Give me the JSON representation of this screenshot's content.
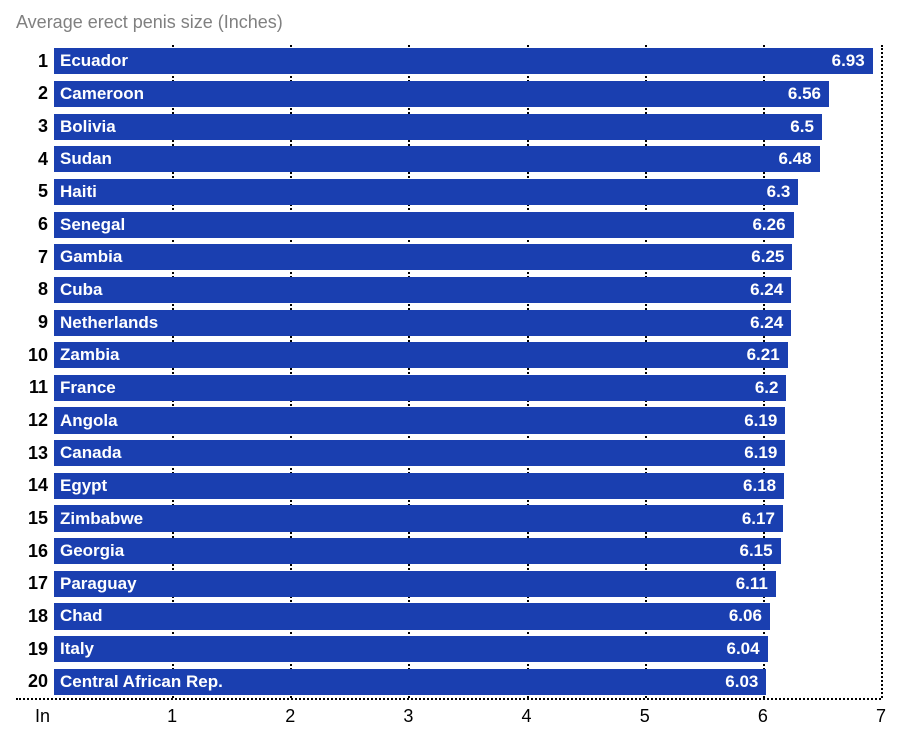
{
  "chart": {
    "type": "bar-horizontal",
    "title": "Average erect penis size (Inches)",
    "title_color": "#808080",
    "title_fontsize": 18,
    "bar_color": "#1a3fb0",
    "text_color": "#ffffff",
    "background_color": "#ffffff",
    "grid_color": "#000000",
    "grid_style": "dotted",
    "xaxis": {
      "label_at_zero": "In",
      "min": 0,
      "max": 7,
      "ticks": [
        1,
        2,
        3,
        4,
        5,
        6,
        7
      ]
    },
    "bar_label_fontsize": 17,
    "bar_value_fontsize": 17,
    "rank_fontsize": 18,
    "rows": [
      {
        "rank": "1",
        "label": "Ecuador",
        "value": 6.93,
        "display": "6.93"
      },
      {
        "rank": "2",
        "label": "Cameroon",
        "value": 6.56,
        "display": "6.56"
      },
      {
        "rank": "3",
        "label": "Bolivia",
        "value": 6.5,
        "display": "6.5"
      },
      {
        "rank": "4",
        "label": "Sudan",
        "value": 6.48,
        "display": "6.48"
      },
      {
        "rank": "5",
        "label": "Haiti",
        "value": 6.3,
        "display": "6.3"
      },
      {
        "rank": "6",
        "label": "Senegal",
        "value": 6.26,
        "display": "6.26"
      },
      {
        "rank": "7",
        "label": "Gambia",
        "value": 6.25,
        "display": "6.25"
      },
      {
        "rank": "8",
        "label": "Cuba",
        "value": 6.24,
        "display": "6.24"
      },
      {
        "rank": "9",
        "label": "Netherlands",
        "value": 6.24,
        "display": "6.24"
      },
      {
        "rank": "10",
        "label": "Zambia",
        "value": 6.21,
        "display": "6.21"
      },
      {
        "rank": "11",
        "label": "France",
        "value": 6.2,
        "display": "6.2"
      },
      {
        "rank": "12",
        "label": "Angola",
        "value": 6.19,
        "display": "6.19"
      },
      {
        "rank": "13",
        "label": "Canada",
        "value": 6.19,
        "display": "6.19"
      },
      {
        "rank": "14",
        "label": "Egypt",
        "value": 6.18,
        "display": "6.18"
      },
      {
        "rank": "15",
        "label": "Zimbabwe",
        "value": 6.17,
        "display": "6.17"
      },
      {
        "rank": "16",
        "label": "Georgia",
        "value": 6.15,
        "display": "6.15"
      },
      {
        "rank": "17",
        "label": "Paraguay",
        "value": 6.11,
        "display": "6.11"
      },
      {
        "rank": "18",
        "label": "Chad",
        "value": 6.06,
        "display": "6.06"
      },
      {
        "rank": "19",
        "label": "Italy",
        "value": 6.04,
        "display": "6.04"
      },
      {
        "rank": "20",
        "label": "Central African Rep.",
        "value": 6.03,
        "display": "6.03"
      }
    ]
  }
}
